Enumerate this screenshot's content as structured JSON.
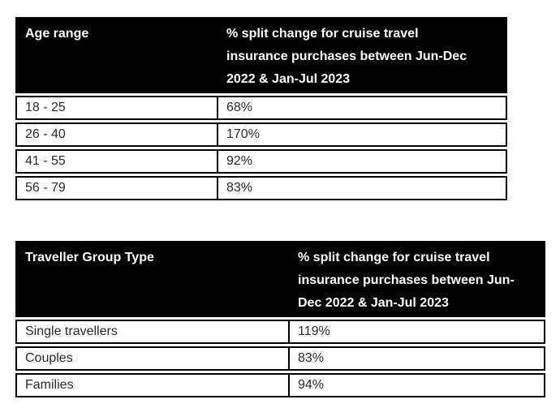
{
  "colors": {
    "header_bg": "#000000",
    "header_text": "#ffffff",
    "cell_text": "#2b2b2b",
    "border": "#000000",
    "page_bg": "#ffffff"
  },
  "tables": [
    {
      "name": "age-range-table",
      "header": {
        "col1": "Age range",
        "col2": "% split change for cruise travel\ninsurance purchases between Jun-Dec\n2022 & Jan-Jul 2023"
      },
      "rows": [
        {
          "label": "18 - 25",
          "value": "68%"
        },
        {
          "label": "26 - 40",
          "value": "170%"
        },
        {
          "label": "41 - 55",
          "value": "92%"
        },
        {
          "label": "56 - 79",
          "value": "83%"
        }
      ]
    },
    {
      "name": "traveller-group-table",
      "header": {
        "col1": "Traveller Group Type",
        "col2": "% split change for cruise travel\ninsurance purchases between Jun-\nDec 2022 & Jan-Jul 2023"
      },
      "rows": [
        {
          "label": "Single travellers",
          "value": "119%"
        },
        {
          "label": "Couples",
          "value": "83%"
        },
        {
          "label": "Families",
          "value": "94%"
        }
      ]
    }
  ],
  "chart_data": [
    {
      "type": "table",
      "title": "% split change for cruise travel insurance purchases between Jun-Dec 2022 & Jan-Jul 2023 by age range",
      "categories": [
        "18 - 25",
        "26 - 40",
        "41 - 55",
        "56 - 79"
      ],
      "values": [
        68,
        170,
        92,
        83
      ],
      "value_unit": "%"
    },
    {
      "type": "table",
      "title": "% split change for cruise travel insurance purchases between Jun-Dec 2022 & Jan-Jul 2023 by traveller group type",
      "categories": [
        "Single travellers",
        "Couples",
        "Families"
      ],
      "values": [
        119,
        83,
        94
      ],
      "value_unit": "%"
    }
  ]
}
